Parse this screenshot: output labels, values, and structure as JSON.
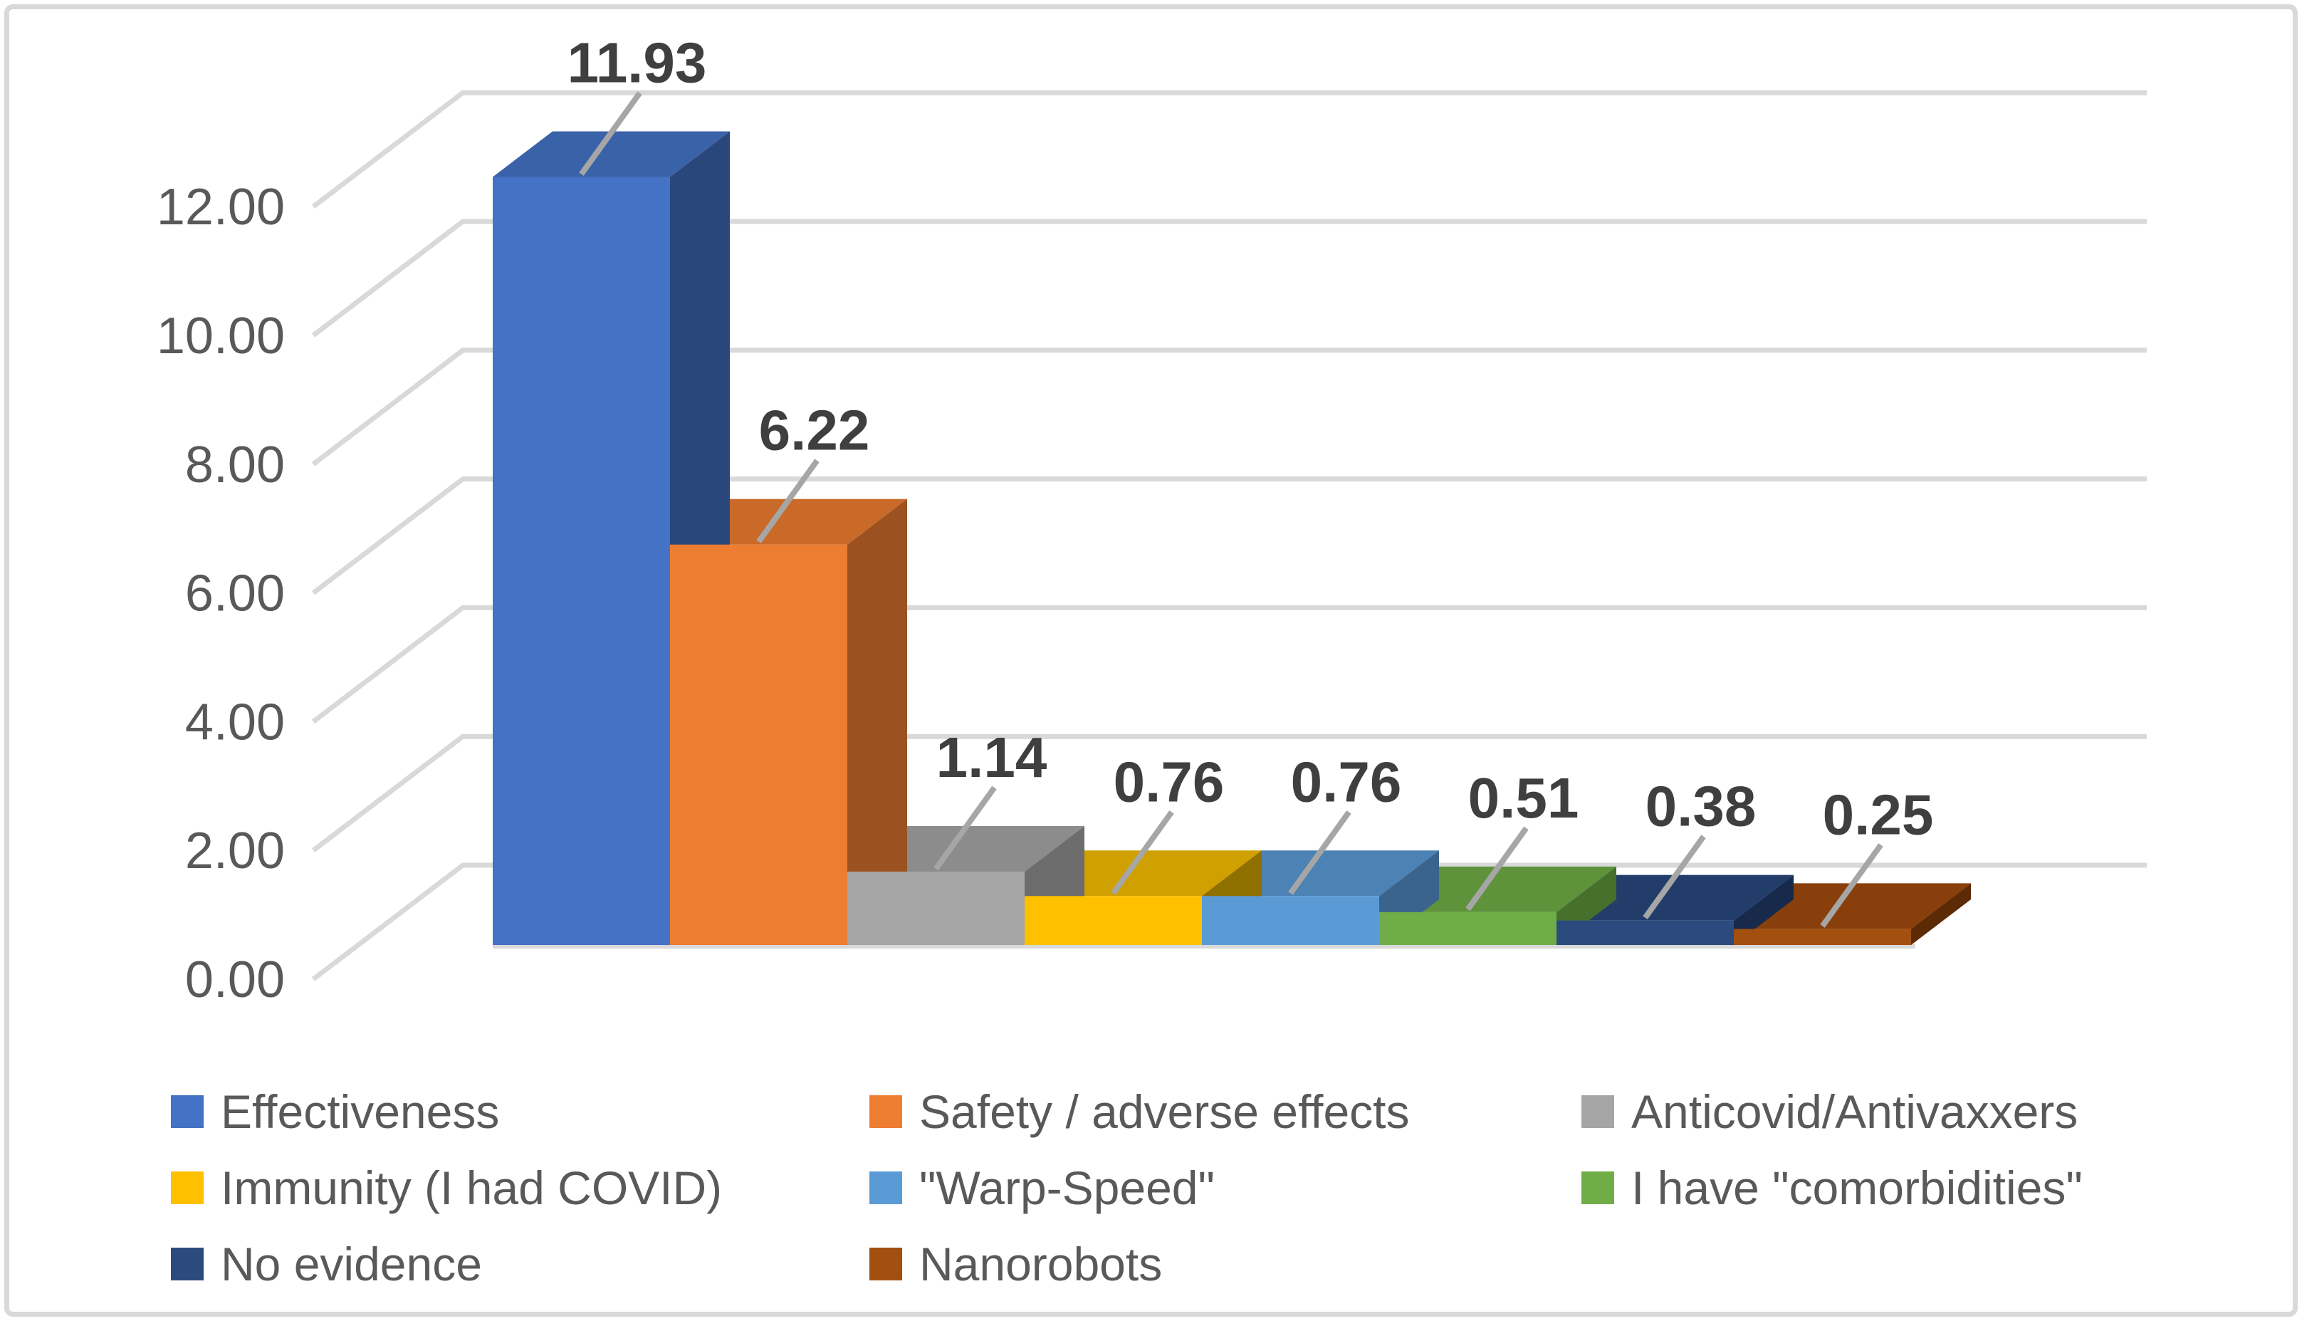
{
  "chart_data": {
    "type": "bar",
    "projection": "3d-column",
    "title": "",
    "xlabel": "",
    "ylabel": "",
    "grid": true,
    "legend_position": "bottom",
    "legend_columns": 3,
    "y_axis": {
      "min": 0,
      "max": 12,
      "step": 2,
      "tick_values": [
        0,
        2,
        4,
        6,
        8,
        10,
        12
      ],
      "tick_labels": [
        "0.00",
        "2.00",
        "4.00",
        "6.00",
        "8.00",
        "10.00",
        "12.00"
      ]
    },
    "series": [
      {
        "id": "effectiveness",
        "label": "Effectiveness",
        "value": 11.93,
        "value_label": "11.93",
        "front": "#4472C4",
        "top": "#3A62A9",
        "side": "#2A477B"
      },
      {
        "id": "safety-adverse-effects",
        "label": "Safety / adverse effects",
        "value": 6.22,
        "value_label": "6.22",
        "front": "#ED7D31",
        "top": "#C96A29",
        "side": "#9C5220"
      },
      {
        "id": "anticovid-antivaxxers",
        "label": "Anticovid/Antivaxxers",
        "value": 1.14,
        "value_label": "1.14",
        "front": "#A5A5A5",
        "top": "#8C8C8C",
        "side": "#6D6D6D"
      },
      {
        "id": "immunity-i-had-covid",
        "label": "Immunity (I had COVID)",
        "value": 0.76,
        "value_label": "0.76",
        "front": "#FFC000",
        "top": "#D0A000",
        "side": "#8F6F00"
      },
      {
        "id": "warp-speed",
        "label": "\"Warp-Speed\"",
        "value": 0.76,
        "value_label": "0.76",
        "front": "#5B9BD5",
        "top": "#4C82B4",
        "side": "#3A648C"
      },
      {
        "id": "i-have-comorbidities",
        "label": "I have \"comorbidities\"",
        "value": 0.51,
        "value_label": "0.51",
        "front": "#70AD47",
        "top": "#5E923B",
        "side": "#47702D"
      },
      {
        "id": "no-evidence",
        "label": "No evidence",
        "value": 0.38,
        "value_label": "0.38",
        "front": "#2B4B7E",
        "top": "#233D6A",
        "side": "#172A4C"
      },
      {
        "id": "nanorobots",
        "label": "Nanorobots",
        "value": 0.25,
        "value_label": "0.25",
        "front": "#A24F10",
        "top": "#883F0B",
        "side": "#5C2B06"
      }
    ]
  },
  "colors": {
    "background": "#FFFFFF",
    "frame_border": "#D9D9D9",
    "gridline": "#D9D9D9",
    "leader_line": "#A6A6A6",
    "axis_text": "#595959",
    "value_label_text": "#3F3F3F",
    "legend_text": "#595959"
  }
}
